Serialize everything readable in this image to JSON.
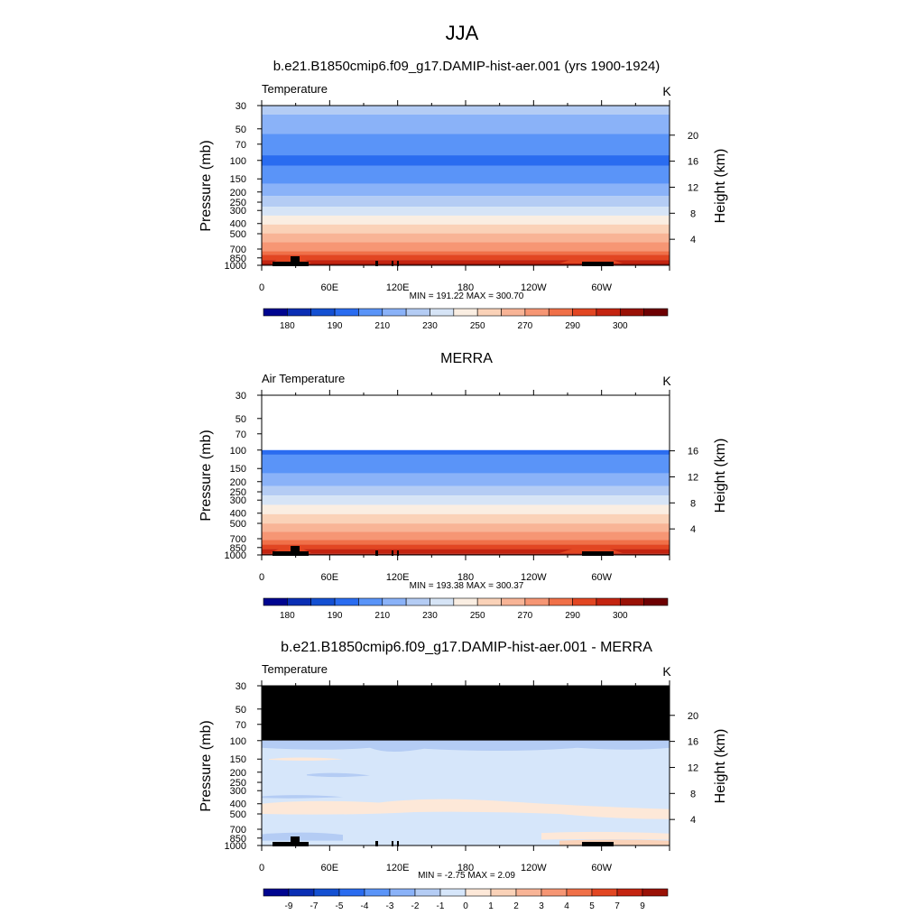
{
  "figure": {
    "season": "JJA"
  },
  "colorbars": {
    "absolute_labels": [
      "180",
      "190",
      "210",
      "230",
      "250",
      "270",
      "290",
      "300"
    ],
    "absolute_colors": [
      "#000590",
      "#0a2eb4",
      "#1450d2",
      "#2a6cf0",
      "#5a94f8",
      "#8ab2f8",
      "#b4ccf4",
      "#d6e4f6",
      "#faeee2",
      "#fad2b8",
      "#f8b496",
      "#f69674",
      "#f07048",
      "#e24622",
      "#c42410",
      "#9a1106",
      "#6e0002"
    ],
    "diff_labels": [
      "-9",
      "-7",
      "-5",
      "-4",
      "-3",
      "-2",
      "-1",
      "0",
      "1",
      "2",
      "3",
      "4",
      "5",
      "7",
      "9"
    ],
    "diff_colors": [
      "#000590",
      "#0a2eb4",
      "#1450d2",
      "#2a6cf0",
      "#5a94f8",
      "#8ab2f8",
      "#b4ccf4",
      "#d6e6fa",
      "#fde8d8",
      "#fad2b8",
      "#f8b496",
      "#f69674",
      "#f07048",
      "#e24622",
      "#c42410",
      "#9a1106"
    ]
  },
  "chart_data": [
    {
      "type": "heatmap",
      "panel_title": "b.e21.B1850cmip6.f09_g17.DAMIP-hist-aer.001 (yrs 1900-1924)",
      "left_label": "Temperature",
      "units": "K",
      "ylabel": "Pressure (mb)",
      "ylabel_right": "Height (km)",
      "x_ticks": [
        "0",
        "60E",
        "120E",
        "180",
        "120W",
        "60W"
      ],
      "y_ticks": [
        "30",
        "50",
        "70",
        "100",
        "150",
        "200",
        "250",
        "300",
        "400",
        "500",
        "700",
        "850",
        "1000"
      ],
      "y_ticks_right": [
        "20",
        "16",
        "12",
        "8",
        "4"
      ],
      "ylim": [
        1000,
        30
      ],
      "stats": "MIN = 191.22  MAX = 300.70",
      "min": 191.22,
      "max": 300.7,
      "missing_above_mb": null
    },
    {
      "type": "heatmap",
      "panel_title": "MERRA",
      "left_label": "Air Temperature",
      "units": "K",
      "ylabel": "Pressure (mb)",
      "ylabel_right": "Height (km)",
      "x_ticks": [
        "0",
        "60E",
        "120E",
        "180",
        "120W",
        "60W"
      ],
      "y_ticks": [
        "30",
        "50",
        "70",
        "100",
        "150",
        "200",
        "250",
        "300",
        "400",
        "500",
        "700",
        "850",
        "1000"
      ],
      "y_ticks_right": [
        "16",
        "12",
        "8",
        "4"
      ],
      "ylim": [
        1000,
        30
      ],
      "stats": "MIN = 193.38  MAX = 300.37",
      "min": 193.38,
      "max": 300.37,
      "missing_above_mb": 100
    },
    {
      "type": "heatmap",
      "panel_title": "b.e21.B1850cmip6.f09_g17.DAMIP-hist-aer.001 - MERRA",
      "left_label": "Temperature",
      "units": "K",
      "ylabel": "Pressure (mb)",
      "ylabel_right": "Height (km)",
      "x_ticks": [
        "0",
        "60E",
        "120E",
        "180",
        "120W",
        "60W"
      ],
      "y_ticks": [
        "30",
        "50",
        "70",
        "100",
        "150",
        "200",
        "250",
        "300",
        "400",
        "500",
        "700",
        "850",
        "1000"
      ],
      "y_ticks_right": [
        "20",
        "16",
        "12",
        "8",
        "4"
      ],
      "ylim": [
        1000,
        30
      ],
      "stats": "MIN =  -2.75  MAX =   2.09",
      "min": -2.75,
      "max": 2.09,
      "missing_above_mb": 100
    }
  ]
}
